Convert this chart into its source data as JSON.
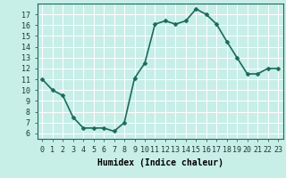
{
  "x": [
    0,
    1,
    2,
    3,
    4,
    5,
    6,
    7,
    8,
    9,
    10,
    11,
    12,
    13,
    14,
    15,
    16,
    17,
    18,
    19,
    20,
    21,
    22,
    23
  ],
  "y": [
    11.0,
    10.0,
    9.5,
    7.5,
    6.5,
    6.5,
    6.5,
    6.2,
    7.0,
    11.1,
    12.5,
    16.1,
    16.4,
    16.1,
    16.4,
    17.5,
    17.0,
    16.1,
    14.5,
    13.0,
    11.5,
    11.5,
    12.0,
    12.0
  ],
  "line_color": "#1a6b5a",
  "marker_color": "#1a6b5a",
  "bg_color": "#c8eee8",
  "grid_color": "#ffffff",
  "xlabel": "Humidex (Indice chaleur)",
  "xlim": [
    -0.5,
    23.5
  ],
  "ylim": [
    5.5,
    18.0
  ],
  "yticks": [
    6,
    7,
    8,
    9,
    10,
    11,
    12,
    13,
    14,
    15,
    16,
    17
  ],
  "xticks": [
    0,
    1,
    2,
    3,
    4,
    5,
    6,
    7,
    8,
    9,
    10,
    11,
    12,
    13,
    14,
    15,
    16,
    17,
    18,
    19,
    20,
    21,
    22,
    23
  ],
  "tick_fontsize": 6.0,
  "label_fontsize": 7.0,
  "line_width": 1.2,
  "marker_size": 2.5
}
